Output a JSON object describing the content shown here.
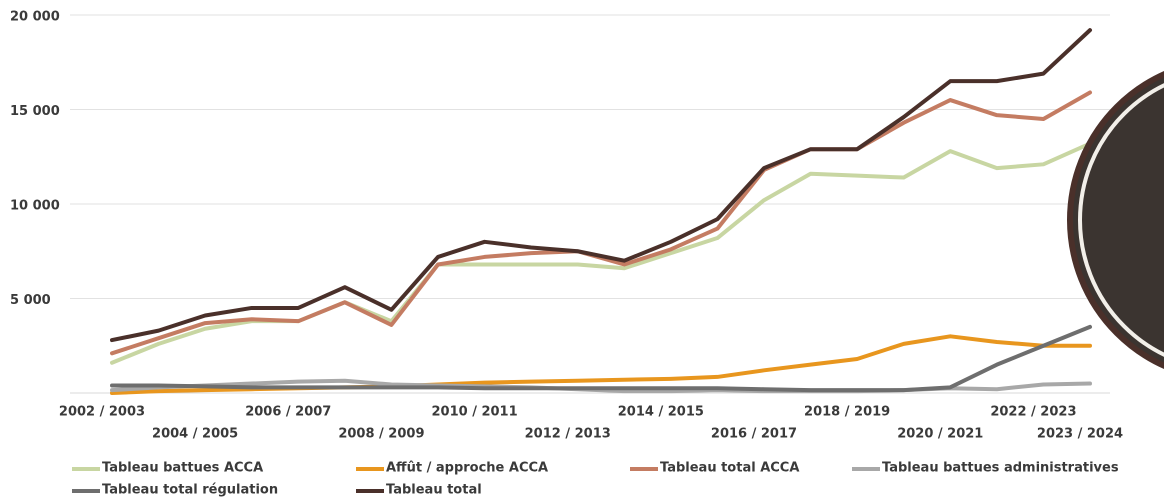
{
  "chart_data": {
    "type": "line",
    "categories": [
      "2002 / 2003",
      null,
      "2004 / 2005",
      null,
      "2006 / 2007",
      null,
      "2008 / 2009",
      null,
      "2010 / 2011",
      null,
      "2012 / 2013",
      null,
      "2014 / 2015",
      null,
      "2016 / 2017",
      null,
      "2018 / 2019",
      null,
      "2020 / 2021",
      null,
      "2022 / 2023",
      "2023 / 2024"
    ],
    "ylim": [
      0,
      20000
    ],
    "yticks": [
      {
        "value": 5000,
        "label": "5 000"
      },
      {
        "value": 10000,
        "label": "10 000"
      },
      {
        "value": 15000,
        "label": "15 000"
      },
      {
        "value": 20000,
        "label": "20 000"
      }
    ],
    "grid": true,
    "legend": "bottom",
    "series": [
      {
        "name": "Tableau battues ACCA",
        "color": "#c8d6a2",
        "values": [
          1600,
          2600,
          3400,
          3800,
          3800,
          4800,
          3800,
          6800,
          6800,
          6800,
          6800,
          6600,
          7400,
          8200,
          10200,
          11600,
          11500,
          11400,
          12800,
          11900,
          12100,
          13200
        ]
      },
      {
        "name": "Affût / approche ACCA",
        "color": "#e8961e",
        "values": [
          0,
          100,
          150,
          200,
          250,
          300,
          350,
          450,
          550,
          600,
          650,
          700,
          750,
          850,
          1200,
          1500,
          1800,
          2600,
          3000,
          2700,
          2500,
          2500
        ]
      },
      {
        "name": "Tableau total ACCA",
        "color": "#c47c62",
        "values": [
          2100,
          2900,
          3700,
          3900,
          3800,
          4800,
          3600,
          6800,
          7200,
          7400,
          7500,
          6800,
          7600,
          8700,
          11800,
          12900,
          12900,
          14300,
          15500,
          14700,
          14500,
          15900
        ]
      },
      {
        "name": "Tableau battues administratives",
        "color": "#a8a8a8",
        "values": [
          150,
          300,
          400,
          500,
          600,
          650,
          450,
          400,
          350,
          300,
          200,
          100,
          100,
          150,
          100,
          100,
          100,
          150,
          250,
          200,
          450,
          500
        ]
      },
      {
        "name": "Tableau total régulation",
        "color": "#6e6e6e",
        "values": [
          400,
          400,
          350,
          300,
          300,
          300,
          300,
          300,
          250,
          250,
          250,
          250,
          250,
          250,
          200,
          150,
          150,
          150,
          300,
          1500,
          2500,
          3500
        ]
      },
      {
        "name": "Tableau total",
        "color": "#4a302a",
        "values": [
          2800,
          3300,
          4100,
          4500,
          4500,
          5600,
          4400,
          7200,
          8000,
          7700,
          7500,
          7000,
          8000,
          9200,
          11900,
          12900,
          12900,
          14600,
          16500,
          16500,
          16900,
          19200
        ]
      }
    ]
  }
}
